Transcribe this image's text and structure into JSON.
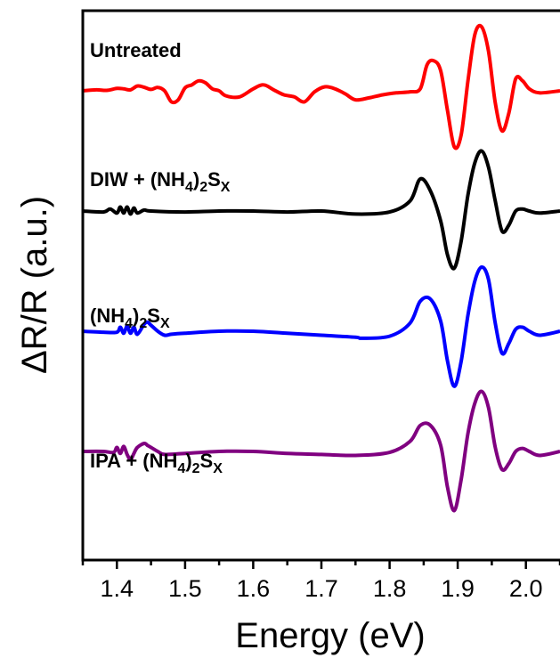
{
  "chart_data": {
    "type": "line",
    "xlabel": "Energy (eV)",
    "ylabel": "ΔR/R (a.u.)",
    "xlim": [
      1.35,
      2.05
    ],
    "xticks": [
      1.4,
      1.5,
      1.6,
      1.7,
      1.8,
      1.9,
      2.0
    ],
    "xtick_labels": [
      "1.4",
      "1.5",
      "1.6",
      "1.7",
      "1.8",
      "1.9",
      "2.0"
    ],
    "y_ticks_shown": false,
    "grid": false,
    "series": [
      {
        "name": "Untreated",
        "label_parts": [
          {
            "text": "Untreated",
            "style": "normal"
          }
        ],
        "color": "#ff0000",
        "offset": 0,
        "x": [
          1.35,
          1.37,
          1.385,
          1.4,
          1.41,
          1.42,
          1.43,
          1.44,
          1.45,
          1.46,
          1.47,
          1.48,
          1.49,
          1.5,
          1.51,
          1.52,
          1.53,
          1.54,
          1.55,
          1.56,
          1.58,
          1.6,
          1.615,
          1.63,
          1.645,
          1.66,
          1.675,
          1.69,
          1.705,
          1.72,
          1.735,
          1.75,
          1.77,
          1.79,
          1.81,
          1.83,
          1.845,
          1.855,
          1.865,
          1.875,
          1.885,
          1.895,
          1.905,
          1.915,
          1.925,
          1.935,
          1.945,
          1.955,
          1.965,
          1.975,
          1.985,
          1.995,
          2.005,
          2.02,
          2.05
        ],
        "y": [
          0.0,
          0.05,
          0.02,
          0.12,
          0.1,
          0.05,
          0.24,
          0.18,
          0.07,
          0.17,
          0.0,
          -0.55,
          -0.45,
          0.15,
          0.3,
          0.5,
          0.4,
          0.1,
          0.0,
          -0.25,
          -0.3,
          0.1,
          0.3,
          0.05,
          -0.2,
          -0.3,
          -0.55,
          -0.05,
          0.2,
          0.1,
          -0.15,
          -0.45,
          -0.35,
          -0.2,
          -0.1,
          -0.05,
          0.1,
          1.3,
          1.5,
          1.0,
          -1.0,
          -2.8,
          -2.2,
          0.5,
          2.8,
          3.2,
          2.0,
          -0.6,
          -2.0,
          -1.1,
          0.6,
          0.5,
          0.1,
          -0.1,
          0.0
        ]
      },
      {
        "name": "DIW + (NH4)2SX",
        "label_parts": [
          {
            "text": "DIW + (NH",
            "style": "normal"
          },
          {
            "text": "4",
            "style": "sub"
          },
          {
            "text": ")",
            "style": "normal"
          },
          {
            "text": "2",
            "style": "sub"
          },
          {
            "text": "S",
            "style": "normal"
          },
          {
            "text": "X",
            "style": "sub"
          }
        ],
        "color": "#000000",
        "offset": -6.0,
        "x": [
          1.35,
          1.38,
          1.39,
          1.4,
          1.405,
          1.41,
          1.415,
          1.42,
          1.425,
          1.43,
          1.44,
          1.45,
          1.5,
          1.55,
          1.6,
          1.65,
          1.7,
          1.75,
          1.8,
          1.83,
          1.845,
          1.86,
          1.875,
          1.885,
          1.895,
          1.905,
          1.915,
          1.925,
          1.935,
          1.945,
          1.955,
          1.965,
          1.975,
          1.985,
          1.995,
          2.005,
          2.02,
          2.05
        ],
        "y": [
          0.0,
          -0.05,
          0.1,
          -0.1,
          0.2,
          -0.1,
          0.2,
          -0.15,
          0.15,
          -0.1,
          0.05,
          0.0,
          -0.05,
          0.0,
          0.0,
          -0.05,
          0.0,
          -0.15,
          -0.05,
          0.5,
          1.6,
          1.0,
          -0.5,
          -2.2,
          -2.85,
          -1.5,
          0.8,
          2.4,
          3.0,
          2.2,
          0.5,
          -1.0,
          -0.7,
          0.0,
          0.1,
          0.0,
          -0.1,
          0.0
        ]
      },
      {
        "name": "(NH4)2SX",
        "label_parts": [
          {
            "text": "(NH",
            "style": "normal"
          },
          {
            "text": "4",
            "style": "sub"
          },
          {
            "text": ")",
            "style": "normal"
          },
          {
            "text": "2",
            "style": "sub"
          },
          {
            "text": "S",
            "style": "normal"
          },
          {
            "text": "X",
            "style": "sub"
          }
        ],
        "color": "#0000ff",
        "offset": -12.0,
        "x": [
          1.35,
          1.38,
          1.4,
          1.405,
          1.41,
          1.415,
          1.42,
          1.425,
          1.43,
          1.44,
          1.445,
          1.45,
          1.46,
          1.47,
          1.48,
          1.5,
          1.55,
          1.6,
          1.65,
          1.7,
          1.75,
          1.76,
          1.8,
          1.83,
          1.845,
          1.86,
          1.875,
          1.885,
          1.895,
          1.905,
          1.915,
          1.925,
          1.935,
          1.945,
          1.955,
          1.965,
          1.975,
          1.985,
          1.995,
          2.005,
          2.02,
          2.05
        ],
        "y": [
          0.0,
          -0.05,
          -0.05,
          0.2,
          -0.1,
          0.25,
          -0.1,
          0.2,
          -0.15,
          0.35,
          0.45,
          0.3,
          0.0,
          -0.2,
          -0.15,
          -0.1,
          0.0,
          0.0,
          -0.1,
          -0.2,
          -0.3,
          -0.35,
          -0.25,
          0.4,
          1.5,
          1.6,
          0.5,
          -1.5,
          -2.75,
          -1.5,
          0.8,
          2.5,
          3.2,
          2.6,
          0.4,
          -1.1,
          -0.6,
          0.1,
          0.2,
          0.0,
          -0.2,
          0.0
        ]
      },
      {
        "name": "IPA + (NH4)2SX",
        "label_parts": [
          {
            "text": "IPA + (NH",
            "style": "normal"
          },
          {
            "text": "4",
            "style": "sub"
          },
          {
            "text": ")",
            "style": "normal"
          },
          {
            "text": "2",
            "style": "sub"
          },
          {
            "text": "S",
            "style": "normal"
          },
          {
            "text": "X",
            "style": "sub"
          }
        ],
        "color": "#800080",
        "offset": -18.0,
        "x": [
          1.35,
          1.38,
          1.395,
          1.4,
          1.405,
          1.41,
          1.415,
          1.42,
          1.425,
          1.43,
          1.44,
          1.445,
          1.45,
          1.46,
          1.47,
          1.5,
          1.55,
          1.6,
          1.65,
          1.7,
          1.75,
          1.8,
          1.83,
          1.845,
          1.86,
          1.875,
          1.885,
          1.895,
          1.905,
          1.915,
          1.925,
          1.935,
          1.945,
          1.955,
          1.965,
          1.975,
          1.985,
          1.995,
          2.005,
          2.02,
          2.05
        ],
        "y": [
          0.0,
          0.0,
          -0.05,
          0.2,
          -0.1,
          0.25,
          -0.15,
          -0.4,
          -0.1,
          0.2,
          0.4,
          0.3,
          0.2,
          0.0,
          -0.15,
          -0.1,
          0.0,
          0.0,
          -0.1,
          -0.15,
          -0.2,
          -0.05,
          0.5,
          1.3,
          1.3,
          0.3,
          -1.8,
          -2.95,
          -1.4,
          0.9,
          2.4,
          3.0,
          2.2,
          0.2,
          -0.9,
          -0.6,
          0.0,
          0.15,
          0.0,
          -0.2,
          0.0
        ]
      }
    ]
  }
}
